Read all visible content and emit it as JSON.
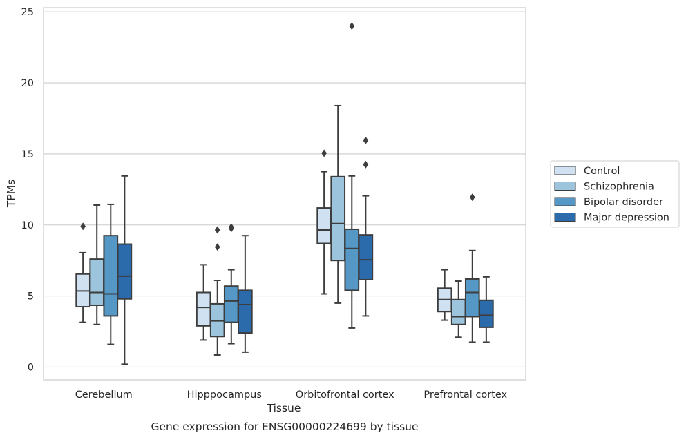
{
  "caption": "Gene expression for ENSG00000224699 by tissue",
  "chart_data": {
    "type": "box",
    "xlabel": "Tissue",
    "ylabel": "TPMs",
    "ylim": [
      -0.9,
      25.3
    ],
    "yticks": [
      0,
      5,
      10,
      15,
      20,
      25
    ],
    "grid": true,
    "legend_position": "right",
    "categories": [
      "Cerebellum",
      "Hipppocampus",
      "Orbitofrontal cortex",
      "Prefrontal cortex"
    ],
    "series": [
      {
        "name": "Control",
        "color": "#d0e1f1",
        "boxes": [
          {
            "whislo": 3.15,
            "q1": 4.25,
            "med": 5.35,
            "q3": 6.55,
            "whishi": 8.05,
            "fliers": [
              9.9
            ]
          },
          {
            "whislo": 1.9,
            "q1": 2.9,
            "med": 4.2,
            "q3": 5.25,
            "whishi": 7.2,
            "fliers": []
          },
          {
            "whislo": 5.15,
            "q1": 8.7,
            "med": 9.65,
            "q3": 11.2,
            "whishi": 13.75,
            "fliers": [
              15.05
            ]
          },
          {
            "whislo": 3.3,
            "q1": 3.9,
            "med": 4.75,
            "q3": 5.55,
            "whishi": 6.85,
            "fliers": []
          }
        ]
      },
      {
        "name": "Schizophrenia",
        "color": "#9cc4dc",
        "boxes": [
          {
            "whislo": 3.0,
            "q1": 4.35,
            "med": 5.25,
            "q3": 7.6,
            "whishi": 11.4,
            "fliers": []
          },
          {
            "whislo": 0.85,
            "q1": 2.15,
            "med": 3.25,
            "q3": 4.45,
            "whishi": 6.1,
            "fliers": [
              8.45,
              9.65
            ]
          },
          {
            "whislo": 4.5,
            "q1": 7.5,
            "med": 10.1,
            "q3": 13.4,
            "whishi": 18.4,
            "fliers": []
          },
          {
            "whislo": 2.1,
            "q1": 3.0,
            "med": 3.55,
            "q3": 4.75,
            "whishi": 6.05,
            "fliers": []
          }
        ]
      },
      {
        "name": "Bipolar disorder",
        "color": "#5598c6",
        "boxes": [
          {
            "whislo": 1.6,
            "q1": 3.6,
            "med": 5.15,
            "q3": 9.25,
            "whishi": 11.45,
            "fliers": []
          },
          {
            "whislo": 1.65,
            "q1": 3.15,
            "med": 4.65,
            "q3": 5.7,
            "whishi": 6.85,
            "fliers": [
              9.75,
              9.85
            ]
          },
          {
            "whislo": 2.75,
            "q1": 5.4,
            "med": 8.35,
            "q3": 9.7,
            "whishi": 13.45,
            "fliers": [
              24.0
            ]
          },
          {
            "whislo": 1.75,
            "q1": 3.55,
            "med": 5.25,
            "q3": 6.2,
            "whishi": 8.2,
            "fliers": [
              11.95
            ]
          }
        ]
      },
      {
        "name": "Major depression",
        "color": "#2b6aab",
        "boxes": [
          {
            "whislo": 0.2,
            "q1": 4.8,
            "med": 6.4,
            "q3": 8.65,
            "whishi": 13.45,
            "fliers": []
          },
          {
            "whislo": 1.05,
            "q1": 2.4,
            "med": 4.4,
            "q3": 5.4,
            "whishi": 9.25,
            "fliers": []
          },
          {
            "whislo": 3.6,
            "q1": 6.15,
            "med": 7.55,
            "q3": 9.3,
            "whishi": 12.05,
            "fliers": [
              14.25,
              15.95
            ]
          },
          {
            "whislo": 1.75,
            "q1": 2.8,
            "med": 3.65,
            "q3": 4.7,
            "whishi": 6.35,
            "fliers": []
          }
        ]
      }
    ]
  }
}
